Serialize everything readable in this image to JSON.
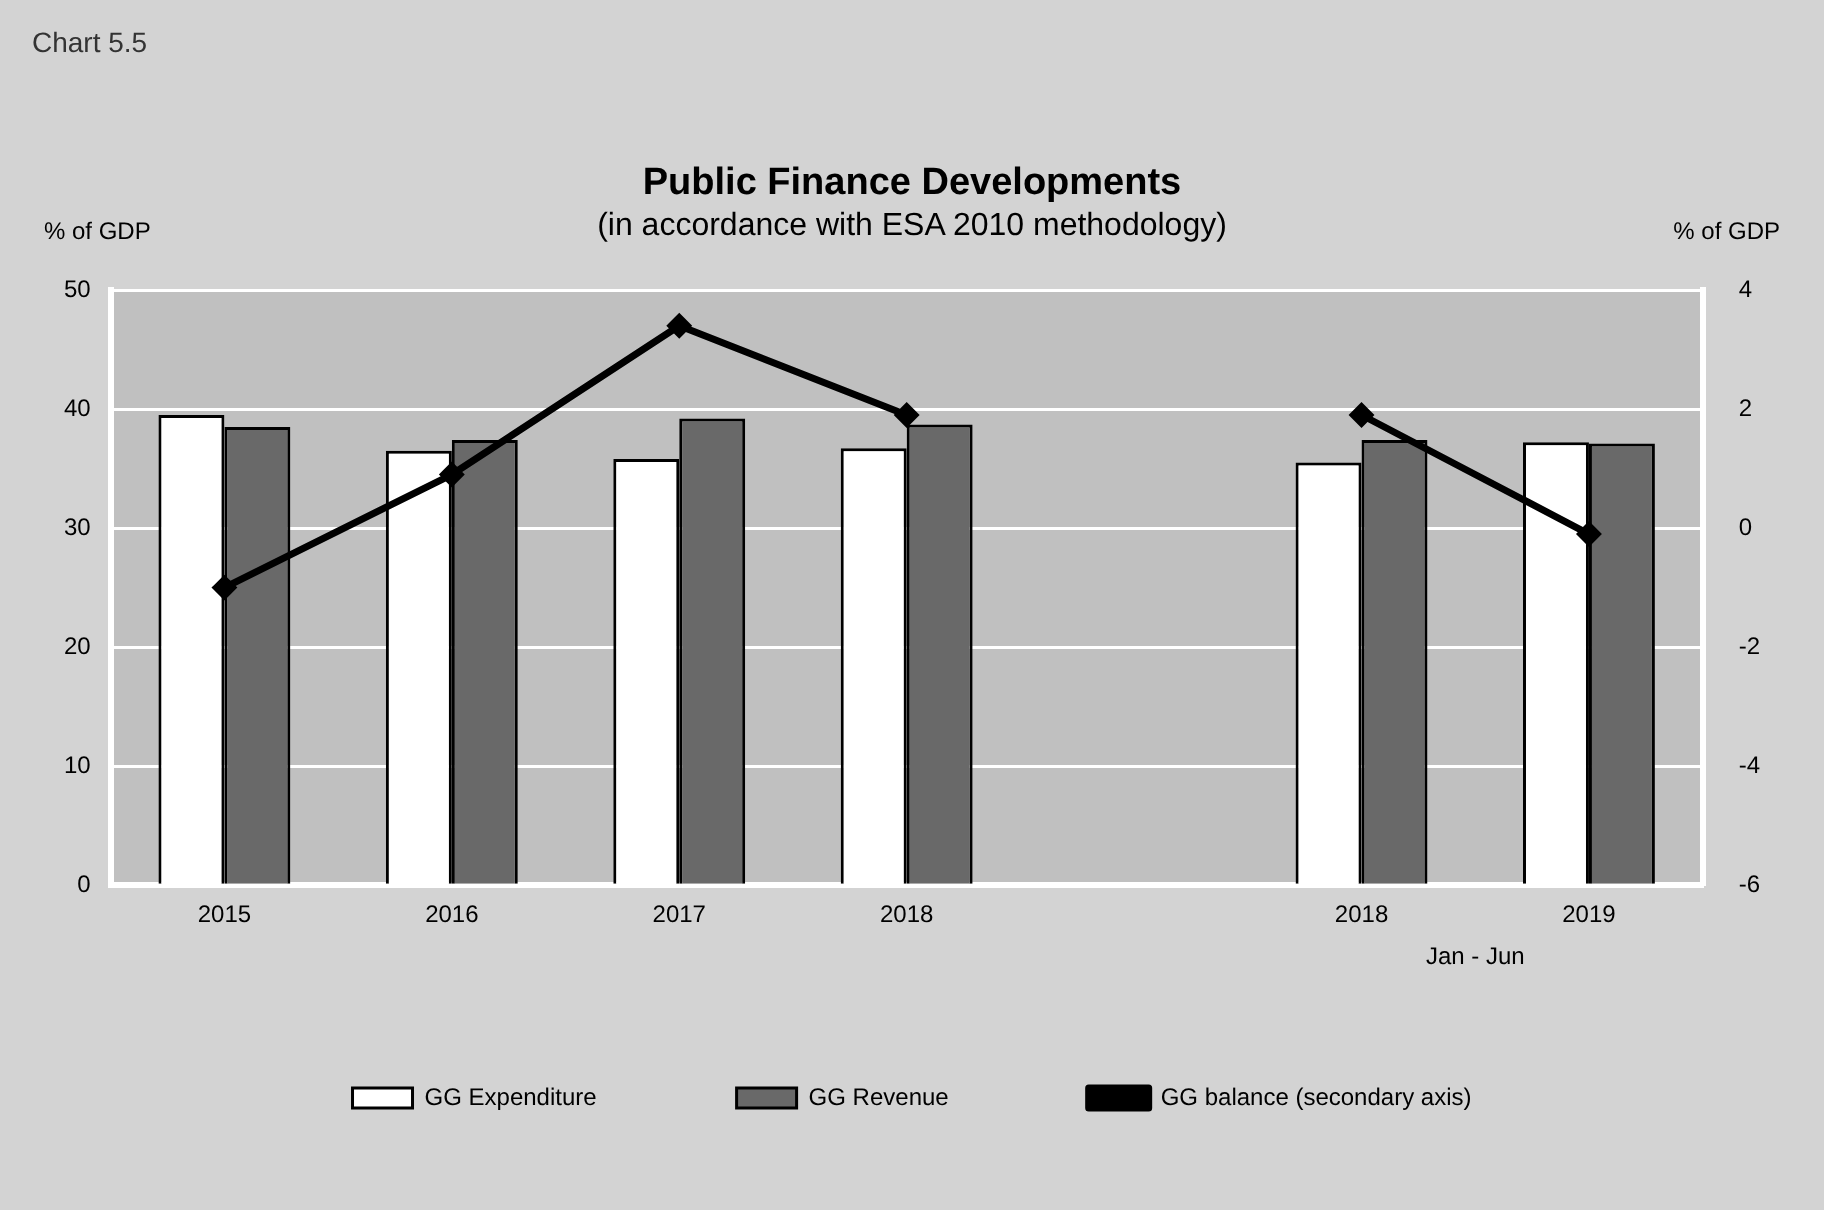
{
  "chart_data": {
    "type": "bar",
    "title": "Public Finance Developments",
    "subtitle": "(in accordance with ESA 2010 methodology)",
    "ylabel": "% of GDP",
    "y2label": "% of GDP",
    "annotations": [
      "Chart 5.5",
      "Jan - Jun"
    ],
    "categories": [
      "2015",
      "2016",
      "2017",
      "2018",
      null,
      "2018",
      "2019"
    ],
    "series": [
      {
        "name": "GG Expenditure",
        "color": "#ffffff",
        "values": [
          39.5,
          36.5,
          35.8,
          36.7,
          null,
          35.5,
          37.2
        ]
      },
      {
        "name": "GG Revenue",
        "color": "#696969",
        "values": [
          38.5,
          37.4,
          39.2,
          38.7,
          null,
          37.4,
          37.1
        ]
      },
      {
        "name": "GG balance (secondary axis)",
        "type": "line",
        "axis": "y2",
        "color": "#000000",
        "values": [
          -1.0,
          0.9,
          3.4,
          1.9,
          null,
          1.9,
          -0.1
        ]
      }
    ],
    "ylim": [
      0,
      50
    ],
    "yticks": [
      0,
      10,
      20,
      30,
      40,
      50
    ],
    "y2lim": [
      -6,
      4
    ],
    "y2ticks": [
      -6,
      -4,
      -2,
      0,
      2,
      4
    ],
    "grid": "y",
    "legend": "bottom",
    "marker": "diamond",
    "line_style": "solid"
  }
}
